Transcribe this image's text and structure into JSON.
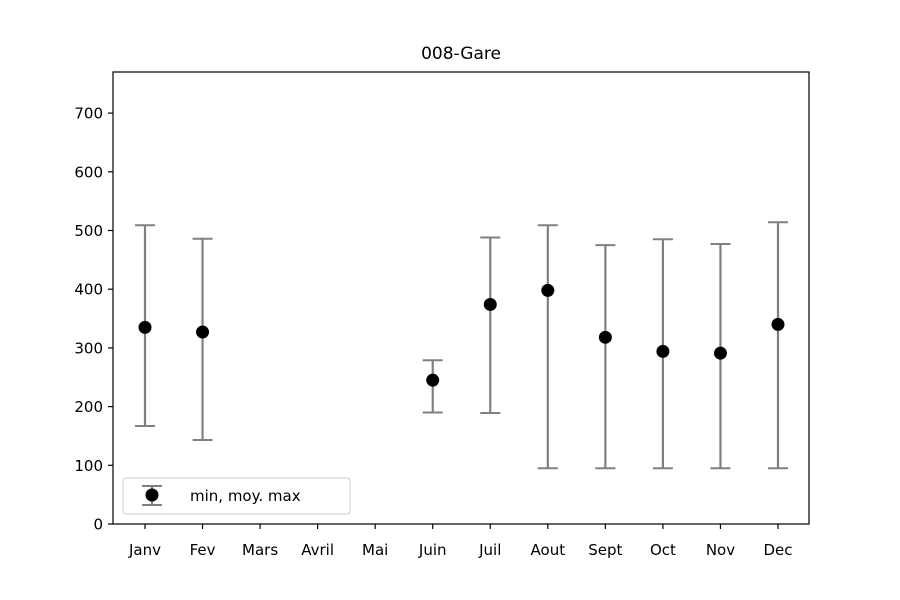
{
  "chart_data": {
    "type": "errorbar",
    "title": "008-Gare",
    "xlabel": "",
    "ylabel": "",
    "categories": [
      "Janv",
      "Fev",
      "Mars",
      "Avril",
      "Mai",
      "Juin",
      "Juil",
      "Aout",
      "Sept",
      "Oct",
      "Nov",
      "Dec"
    ],
    "ylim": [
      0,
      770
    ],
    "yticks": [
      0,
      100,
      200,
      300,
      400,
      500,
      600,
      700
    ],
    "grid": false,
    "legend_position": "lower-left",
    "series": [
      {
        "name": "min, moy. max",
        "mean": [
          335,
          327,
          null,
          null,
          null,
          245,
          374,
          398,
          318,
          294,
          291,
          340
        ],
        "min": [
          167,
          143,
          null,
          null,
          null,
          190,
          189,
          95,
          95,
          95,
          95,
          95
        ],
        "max": [
          509,
          486,
          null,
          null,
          null,
          279,
          488,
          509,
          475,
          485,
          477,
          514
        ]
      }
    ],
    "colors": {
      "marker": "#000000",
      "errorbar": "#808080",
      "axes": "#000000"
    }
  }
}
